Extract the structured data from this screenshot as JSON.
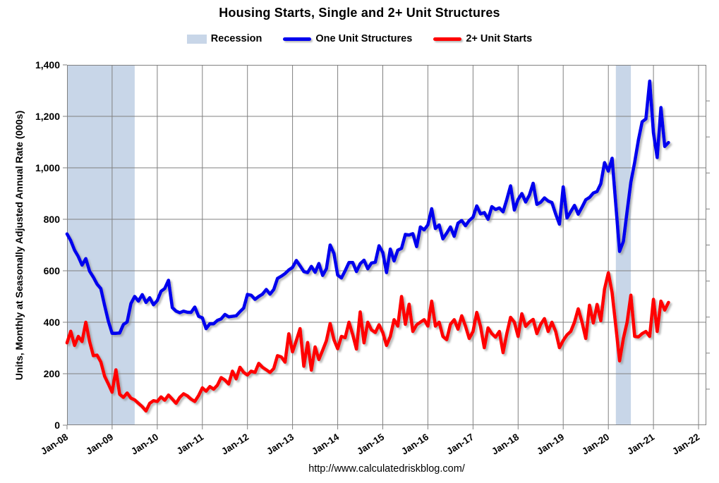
{
  "title": "Housing Starts, Single and 2+ Unit Structures",
  "footer_url": "http://www.calculatedriskblog.com/",
  "colors": {
    "one_unit_line": "#0000EE",
    "two_plus_line": "#FF0000",
    "recession_band": "#C8D6E8",
    "gridline": "#808080",
    "text": "#000000",
    "background": "#FFFFFF"
  },
  "legend": {
    "items": [
      {
        "label": "Recession",
        "swatch": "band",
        "color": "#C8D6E8"
      },
      {
        "label": "One Unit Structures",
        "swatch": "line",
        "color": "#0000EE"
      },
      {
        "label": "2+ Unit Starts",
        "swatch": "line",
        "color": "#FF0000"
      }
    ]
  },
  "chart_data": {
    "type": "line",
    "title": "Housing Starts, Single and 2+ Unit Structures",
    "xlabel": "",
    "ylabel": "Units, Monthly at Seasonally Adjusted Annual Rate (000s)",
    "x_start": "2008-01",
    "x_frequency": "monthly",
    "x_tick_labels": [
      "Jan-08",
      "Jan-09",
      "Jan-10",
      "Jan-11",
      "Jan-12",
      "Jan-13",
      "Jan-14",
      "Jan-15",
      "Jan-16",
      "Jan-17",
      "Jan-18",
      "Jan-19",
      "Jan-20",
      "Jan-21",
      "Jan-22"
    ],
    "x_axis_end_year": 2022.17,
    "ylim": [
      0,
      1400
    ],
    "y_tick_interval": 200,
    "y_tick_labels": [
      "0",
      "200",
      "400",
      "600",
      "800",
      "1,000",
      "1,200",
      "1,400"
    ],
    "grid": true,
    "legend_position": "top",
    "right_axis_minor_tick_count": 10,
    "recession_bands": [
      {
        "from": "2008-01",
        "to": "2009-06"
      },
      {
        "from": "2020-03",
        "to": "2020-06"
      }
    ],
    "series": [
      {
        "name": "One Unit Structures",
        "color": "#0000EE",
        "values": [
          743,
          717,
          680,
          655,
          622,
          647,
          598,
          575,
          548,
          531,
          465,
          404,
          357,
          357,
          358,
          391,
          401,
          473,
          500,
          482,
          507,
          477,
          495,
          468,
          484,
          520,
          531,
          563,
          457,
          443,
          437,
          443,
          439,
          438,
          459,
          423,
          417,
          375,
          394,
          394,
          407,
          413,
          430,
          421,
          423,
          425,
          441,
          455,
          508,
          505,
          489,
          500,
          509,
          527,
          509,
          527,
          570,
          579,
          589,
          603,
          613,
          640,
          619,
          597,
          593,
          617,
          594,
          628,
          582,
          608,
          700,
          667,
          583,
          572,
          600,
          632,
          632,
          597,
          627,
          641,
          608,
          630,
          633,
          697,
          671,
          593,
          684,
          638,
          680,
          687,
          741,
          739,
          744,
          694,
          770,
          759,
          778,
          841,
          764,
          778,
          724,
          746,
          770,
          734,
          785,
          795,
          775,
          795,
          808,
          852,
          821,
          826,
          800,
          849,
          838,
          844,
          829,
          877,
          930,
          836,
          877,
          900,
          867,
          894,
          940,
          858,
          866,
          883,
          871,
          865,
          820,
          781,
          926,
          805,
          830,
          854,
          820,
          847,
          876,
          885,
          902,
          908,
          938,
          1020,
          987,
          1037,
          856,
          675,
          714,
          831,
          944,
          1021,
          1108,
          1179,
          1190,
          1337,
          1136,
          1040,
          1234,
          1083,
          1098
        ]
      },
      {
        "name": "2+ Unit Starts",
        "color": "#FF0000",
        "values": [
          320,
          365,
          310,
          345,
          325,
          400,
          325,
          270,
          272,
          246,
          190,
          160,
          128,
          215,
          120,
          108,
          125,
          105,
          98,
          85,
          72,
          55,
          85,
          95,
          92,
          110,
          97,
          117,
          101,
          85,
          108,
          122,
          114,
          101,
          92,
          115,
          145,
          132,
          150,
          140,
          155,
          185,
          175,
          160,
          210,
          180,
          225,
          205,
          195,
          210,
          205,
          240,
          225,
          215,
          205,
          220,
          270,
          265,
          245,
          355,
          285,
          329,
          375,
          229,
          321,
          214,
          304,
          255,
          291,
          328,
          395,
          332,
          297,
          345,
          340,
          400,
          352,
          296,
          440,
          320,
          400,
          370,
          360,
          390,
          360,
          310,
          345,
          410,
          385,
          500,
          392,
          470,
          364,
          390,
          400,
          410,
          385,
          482,
          385,
          400,
          345,
          332,
          392,
          410,
          373,
          425,
          385,
          337,
          364,
          438,
          384,
          301,
          378,
          356,
          342,
          364,
          282,
          356,
          419,
          400,
          345,
          433,
          384,
          400,
          411,
          356,
          392,
          414,
          364,
          400,
          364,
          301,
          329,
          351,
          364,
          400,
          452,
          400,
          337,
          466,
          397,
          469,
          406,
          529,
          592,
          515,
          384,
          250,
          337,
          400,
          505,
          345,
          343,
          356,
          364,
          345,
          489,
          364,
          482,
          447,
          477
        ]
      }
    ]
  }
}
